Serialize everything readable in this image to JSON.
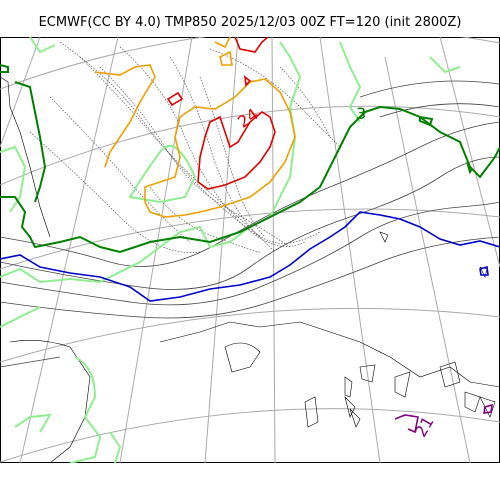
{
  "title": "ECMWF(CC BY 4.0) TMP850 2025/12/03 00Z FT=120 (init 2800Z)",
  "contour_labels": {
    "red": "24",
    "green": "3",
    "purple": "21"
  },
  "colors": {
    "coast": "#000000",
    "grid": "#aaaaaa",
    "dotted": "#555555",
    "thin": "#444444",
    "light_green": "#90ee90",
    "green": "#008000",
    "blue": "#0000cd",
    "orange": "#f0a000",
    "red": "#e00000",
    "purple": "#800080"
  }
}
